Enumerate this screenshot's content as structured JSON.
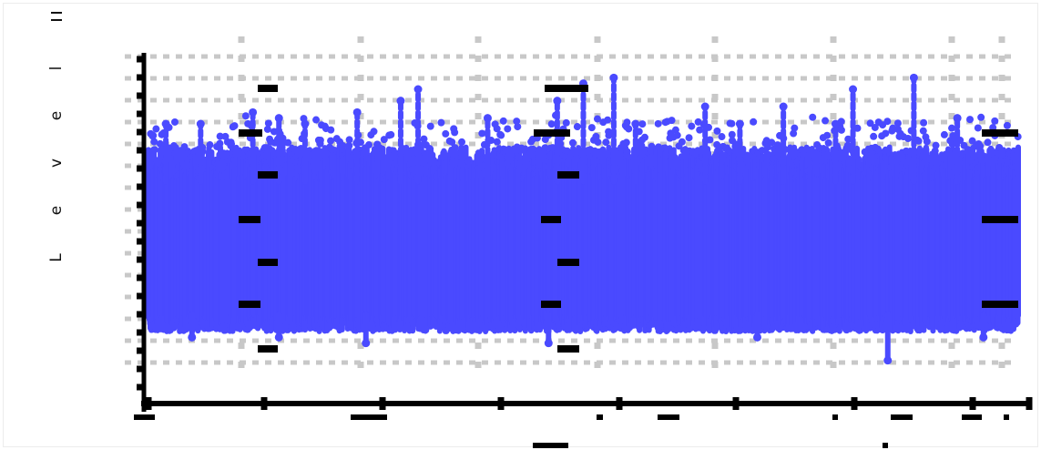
{
  "chart_data": {
    "type": "scatter",
    "title": "",
    "xlabel": "",
    "ylabel": "Level",
    "grid": true,
    "legend": "none",
    "marker_color": "#4a4aff",
    "axis_color": "#000000",
    "grid_color": "#c8c8c8",
    "series": [
      {
        "x_range": [
          0,
          1000
        ],
        "band": [
          15,
          38
        ],
        "peaks": [
          {
            "x": 20,
            "y": 48
          },
          {
            "x": 60,
            "y": 48
          },
          {
            "x": 120,
            "y": 50
          },
          {
            "x": 150,
            "y": 49
          },
          {
            "x": 180,
            "y": 48
          },
          {
            "x": 240,
            "y": 50
          },
          {
            "x": 290,
            "y": 52
          },
          {
            "x": 310,
            "y": 54
          },
          {
            "x": 390,
            "y": 49
          },
          {
            "x": 470,
            "y": 52
          },
          {
            "x": 500,
            "y": 55
          },
          {
            "x": 535,
            "y": 56
          },
          {
            "x": 560,
            "y": 48
          },
          {
            "x": 640,
            "y": 51
          },
          {
            "x": 680,
            "y": 48
          },
          {
            "x": 730,
            "y": 51
          },
          {
            "x": 790,
            "y": 48
          },
          {
            "x": 810,
            "y": 54
          },
          {
            "x": 880,
            "y": 56
          },
          {
            "x": 930,
            "y": 49
          }
        ],
        "dips": [
          {
            "x": 50,
            "y": 11
          },
          {
            "x": 150,
            "y": 11
          },
          {
            "x": 250,
            "y": 10
          },
          {
            "x": 460,
            "y": 10
          },
          {
            "x": 700,
            "y": 11
          },
          {
            "x": 850,
            "y": 7
          },
          {
            "x": 960,
            "y": 11
          }
        ]
      }
    ]
  }
}
